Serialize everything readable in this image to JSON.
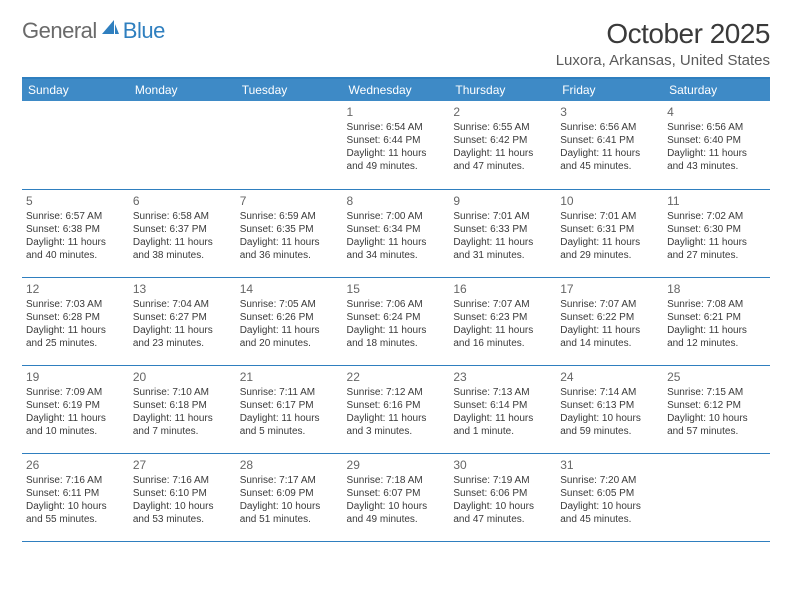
{
  "logo": {
    "text1": "General",
    "text2": "Blue"
  },
  "title": "October 2025",
  "location": "Luxora, Arkansas, United States",
  "colors": {
    "header_bg": "#3e8ac6",
    "border": "#2f7fbf",
    "text": "#3a3a3a",
    "subtext": "#666666"
  },
  "day_labels": [
    "Sunday",
    "Monday",
    "Tuesday",
    "Wednesday",
    "Thursday",
    "Friday",
    "Saturday"
  ],
  "weeks": [
    [
      null,
      null,
      null,
      {
        "n": "1",
        "sr": "6:54 AM",
        "ss": "6:44 PM",
        "dh": "11",
        "dm": "49"
      },
      {
        "n": "2",
        "sr": "6:55 AM",
        "ss": "6:42 PM",
        "dh": "11",
        "dm": "47"
      },
      {
        "n": "3",
        "sr": "6:56 AM",
        "ss": "6:41 PM",
        "dh": "11",
        "dm": "45"
      },
      {
        "n": "4",
        "sr": "6:56 AM",
        "ss": "6:40 PM",
        "dh": "11",
        "dm": "43"
      }
    ],
    [
      {
        "n": "5",
        "sr": "6:57 AM",
        "ss": "6:38 PM",
        "dh": "11",
        "dm": "40"
      },
      {
        "n": "6",
        "sr": "6:58 AM",
        "ss": "6:37 PM",
        "dh": "11",
        "dm": "38"
      },
      {
        "n": "7",
        "sr": "6:59 AM",
        "ss": "6:35 PM",
        "dh": "11",
        "dm": "36"
      },
      {
        "n": "8",
        "sr": "7:00 AM",
        "ss": "6:34 PM",
        "dh": "11",
        "dm": "34"
      },
      {
        "n": "9",
        "sr": "7:01 AM",
        "ss": "6:33 PM",
        "dh": "11",
        "dm": "31"
      },
      {
        "n": "10",
        "sr": "7:01 AM",
        "ss": "6:31 PM",
        "dh": "11",
        "dm": "29"
      },
      {
        "n": "11",
        "sr": "7:02 AM",
        "ss": "6:30 PM",
        "dh": "11",
        "dm": "27"
      }
    ],
    [
      {
        "n": "12",
        "sr": "7:03 AM",
        "ss": "6:28 PM",
        "dh": "11",
        "dm": "25"
      },
      {
        "n": "13",
        "sr": "7:04 AM",
        "ss": "6:27 PM",
        "dh": "11",
        "dm": "23"
      },
      {
        "n": "14",
        "sr": "7:05 AM",
        "ss": "6:26 PM",
        "dh": "11",
        "dm": "20"
      },
      {
        "n": "15",
        "sr": "7:06 AM",
        "ss": "6:24 PM",
        "dh": "11",
        "dm": "18"
      },
      {
        "n": "16",
        "sr": "7:07 AM",
        "ss": "6:23 PM",
        "dh": "11",
        "dm": "16"
      },
      {
        "n": "17",
        "sr": "7:07 AM",
        "ss": "6:22 PM",
        "dh": "11",
        "dm": "14"
      },
      {
        "n": "18",
        "sr": "7:08 AM",
        "ss": "6:21 PM",
        "dh": "11",
        "dm": "12"
      }
    ],
    [
      {
        "n": "19",
        "sr": "7:09 AM",
        "ss": "6:19 PM",
        "dh": "11",
        "dm": "10"
      },
      {
        "n": "20",
        "sr": "7:10 AM",
        "ss": "6:18 PM",
        "dh": "11",
        "dm": "7"
      },
      {
        "n": "21",
        "sr": "7:11 AM",
        "ss": "6:17 PM",
        "dh": "11",
        "dm": "5"
      },
      {
        "n": "22",
        "sr": "7:12 AM",
        "ss": "6:16 PM",
        "dh": "11",
        "dm": "3"
      },
      {
        "n": "23",
        "sr": "7:13 AM",
        "ss": "6:14 PM",
        "dh": "11",
        "dm": "1"
      },
      {
        "n": "24",
        "sr": "7:14 AM",
        "ss": "6:13 PM",
        "dh": "10",
        "dm": "59"
      },
      {
        "n": "25",
        "sr": "7:15 AM",
        "ss": "6:12 PM",
        "dh": "10",
        "dm": "57"
      }
    ],
    [
      {
        "n": "26",
        "sr": "7:16 AM",
        "ss": "6:11 PM",
        "dh": "10",
        "dm": "55"
      },
      {
        "n": "27",
        "sr": "7:16 AM",
        "ss": "6:10 PM",
        "dh": "10",
        "dm": "53"
      },
      {
        "n": "28",
        "sr": "7:17 AM",
        "ss": "6:09 PM",
        "dh": "10",
        "dm": "51"
      },
      {
        "n": "29",
        "sr": "7:18 AM",
        "ss": "6:07 PM",
        "dh": "10",
        "dm": "49"
      },
      {
        "n": "30",
        "sr": "7:19 AM",
        "ss": "6:06 PM",
        "dh": "10",
        "dm": "47"
      },
      {
        "n": "31",
        "sr": "7:20 AM",
        "ss": "6:05 PM",
        "dh": "10",
        "dm": "45"
      },
      null
    ]
  ],
  "labels": {
    "sunrise": "Sunrise:",
    "sunset": "Sunset:",
    "daylight": "Daylight:",
    "hours": "hours",
    "and": "and",
    "minute": "minute.",
    "minutes": "minutes."
  }
}
